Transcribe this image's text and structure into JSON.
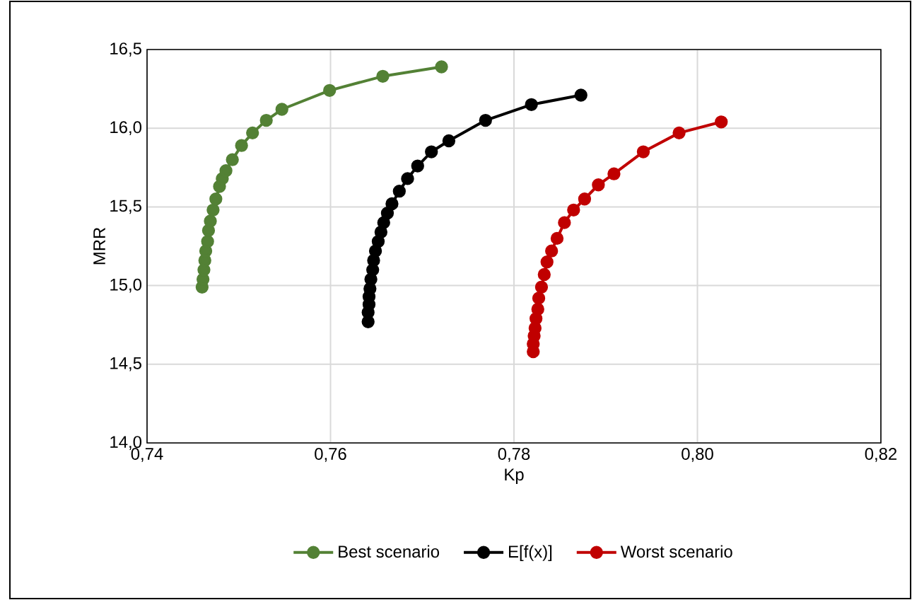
{
  "chart_data": {
    "type": "line",
    "xlabel": "Kp",
    "ylabel": "MRR",
    "xlim": [
      0.74,
      0.82
    ],
    "ylim": [
      14.0,
      16.5
    ],
    "xticks": [
      {
        "value": 0.74,
        "label": "0,74"
      },
      {
        "value": 0.76,
        "label": "0,76"
      },
      {
        "value": 0.78,
        "label": "0,78"
      },
      {
        "value": 0.8,
        "label": "0,80"
      },
      {
        "value": 0.82,
        "label": "0,82"
      }
    ],
    "yticks": [
      {
        "value": 14.0,
        "label": "14,0"
      },
      {
        "value": 14.5,
        "label": "14,5"
      },
      {
        "value": 15.0,
        "label": "15,0"
      },
      {
        "value": 15.5,
        "label": "15,5"
      },
      {
        "value": 16.0,
        "label": "16,0"
      },
      {
        "value": 16.5,
        "label": "16,5"
      }
    ],
    "grid": true,
    "legend": "bottom",
    "marker": "circle",
    "line_style": "solid",
    "series": [
      {
        "name": "Best scenario",
        "color": "#538135",
        "x": [
          0.746,
          0.7461,
          0.7462,
          0.7463,
          0.7464,
          0.7466,
          0.7467,
          0.7469,
          0.7472,
          0.7475,
          0.7479,
          0.7482,
          0.7486,
          0.7493,
          0.7503,
          0.7515,
          0.753,
          0.7547,
          0.7599,
          0.7657,
          0.7721
        ],
        "values": [
          14.99,
          15.04,
          15.1,
          15.16,
          15.22,
          15.28,
          15.35,
          15.41,
          15.48,
          15.55,
          15.63,
          15.68,
          15.73,
          15.8,
          15.89,
          15.97,
          16.05,
          16.12,
          16.24,
          16.33,
          16.39
        ]
      },
      {
        "name": "E[f(x)]",
        "color": "#000000",
        "x": [
          0.7641,
          0.7641,
          0.7642,
          0.7642,
          0.7643,
          0.7644,
          0.7646,
          0.7647,
          0.7649,
          0.7652,
          0.7655,
          0.7658,
          0.7662,
          0.7667,
          0.7675,
          0.7684,
          0.7695,
          0.771,
          0.7729,
          0.7769,
          0.7819,
          0.7873
        ],
        "values": [
          14.77,
          14.83,
          14.88,
          14.93,
          14.98,
          15.04,
          15.1,
          15.16,
          15.22,
          15.28,
          15.34,
          15.4,
          15.46,
          15.52,
          15.6,
          15.68,
          15.76,
          15.85,
          15.92,
          16.05,
          16.15,
          16.21
        ]
      },
      {
        "name": "Worst scenario",
        "color": "#c00000",
        "x": [
          0.7821,
          0.7821,
          0.7822,
          0.7823,
          0.7824,
          0.7826,
          0.7827,
          0.783,
          0.7833,
          0.7836,
          0.7841,
          0.7847,
          0.7855,
          0.7865,
          0.7877,
          0.7892,
          0.7909,
          0.7941,
          0.798,
          0.8026
        ],
        "values": [
          14.58,
          14.63,
          14.68,
          14.73,
          14.79,
          14.85,
          14.92,
          14.99,
          15.07,
          15.15,
          15.22,
          15.3,
          15.4,
          15.48,
          15.55,
          15.64,
          15.71,
          15.85,
          15.97,
          16.04
        ]
      }
    ]
  }
}
